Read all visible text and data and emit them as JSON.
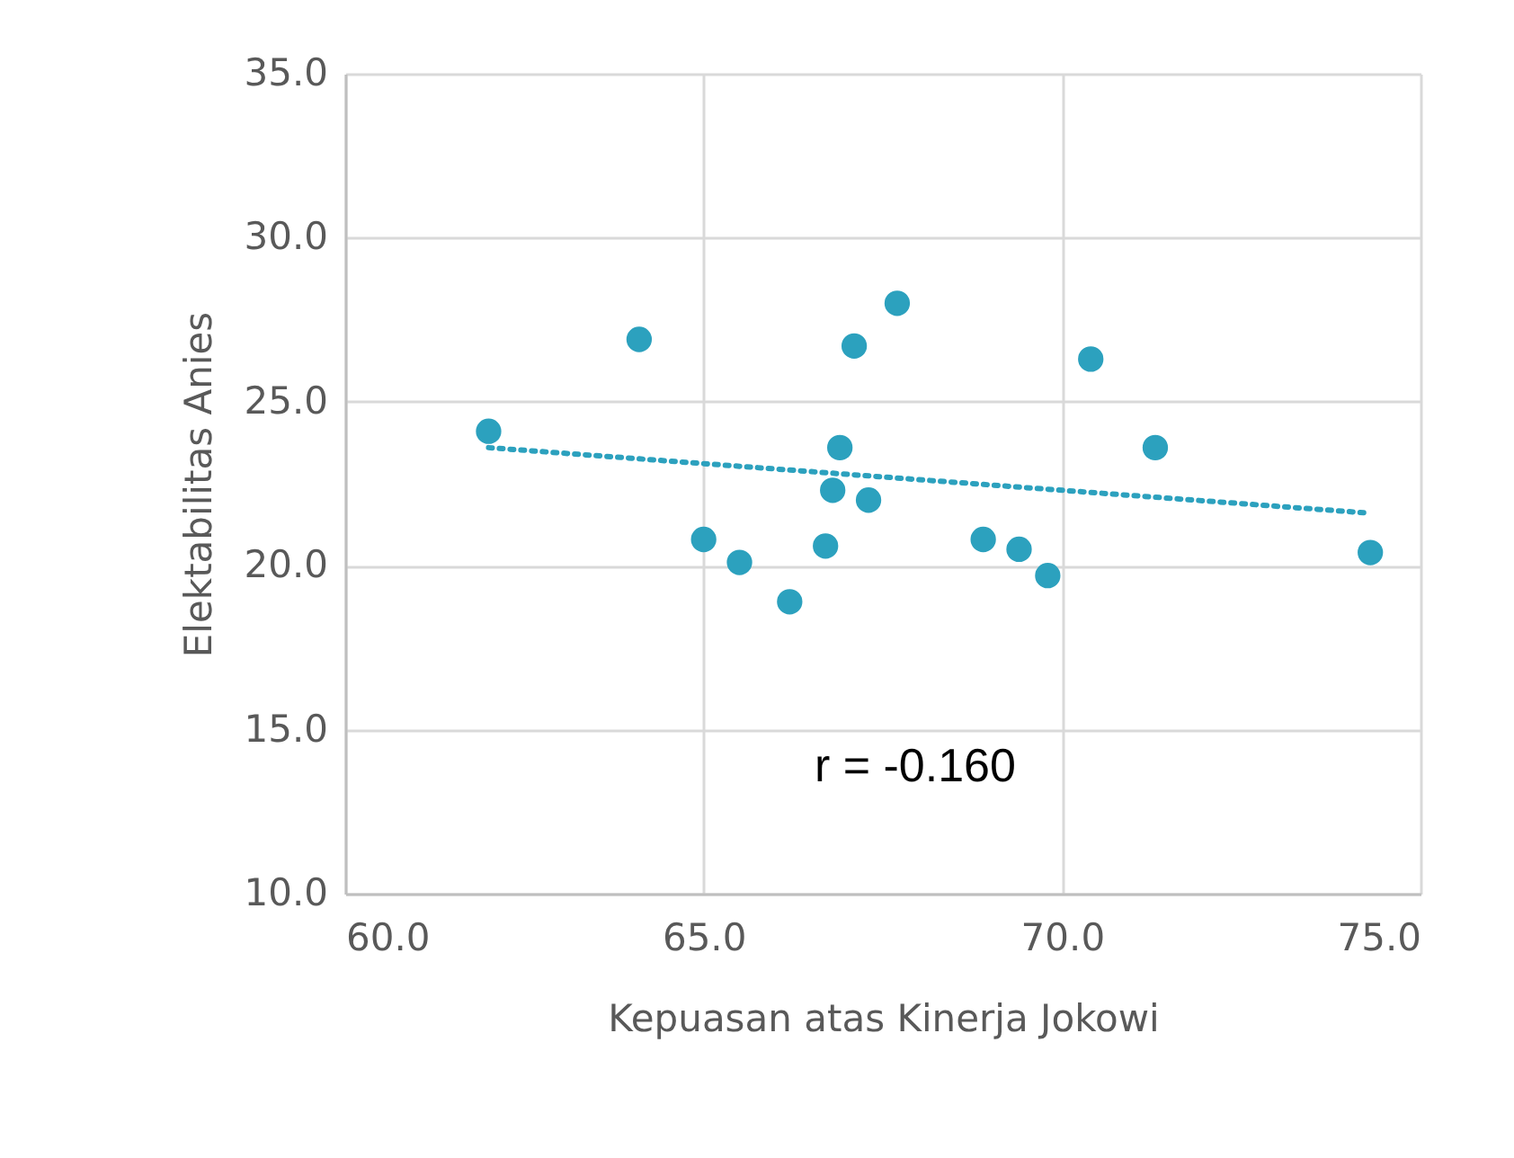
{
  "chart_data": {
    "type": "scatter",
    "xlabel": "Kepuasan atas Kinerja Jokowi",
    "ylabel": "Elektabilitas Anies",
    "xlim": [
      60,
      75
    ],
    "xticks": [
      {
        "value": 60,
        "label": "60.0"
      },
      {
        "value": 65,
        "label": "65.0"
      },
      {
        "value": 70,
        "label": "70.0"
      },
      {
        "value": 75,
        "label": "75.0"
      }
    ],
    "ylim": [
      10,
      35
    ],
    "yticks": [
      {
        "value": 10,
        "label": "10.0"
      },
      {
        "value": 15,
        "label": "15.0"
      },
      {
        "value": 20,
        "label": "20.0"
      },
      {
        "value": 25,
        "label": "25.0"
      },
      {
        "value": 30,
        "label": "30.0"
      },
      {
        "value": 35,
        "label": "35.0"
      }
    ],
    "grid": true,
    "annotations": [
      "r = -0.160"
    ],
    "series": [
      {
        "marker": "circle",
        "color": "#2ca1be",
        "x": [
          62.0,
          64.1,
          65.0,
          65.5,
          66.2,
          66.7,
          66.9,
          66.8,
          67.1,
          67.3,
          67.7,
          68.9,
          69.4,
          69.8,
          70.4,
          71.3,
          74.3
        ],
        "values": [
          24.1,
          26.9,
          20.8,
          20.1,
          18.9,
          20.6,
          23.6,
          22.3,
          26.7,
          22.0,
          28.0,
          20.8,
          20.5,
          19.7,
          26.3,
          23.6,
          20.4
        ]
      },
      {
        "type": "line",
        "color": "#2ca1be",
        "line_style": "dotted",
        "x": [
          62.0,
          74.3
        ],
        "values": [
          23.6,
          21.6
        ]
      }
    ]
  }
}
